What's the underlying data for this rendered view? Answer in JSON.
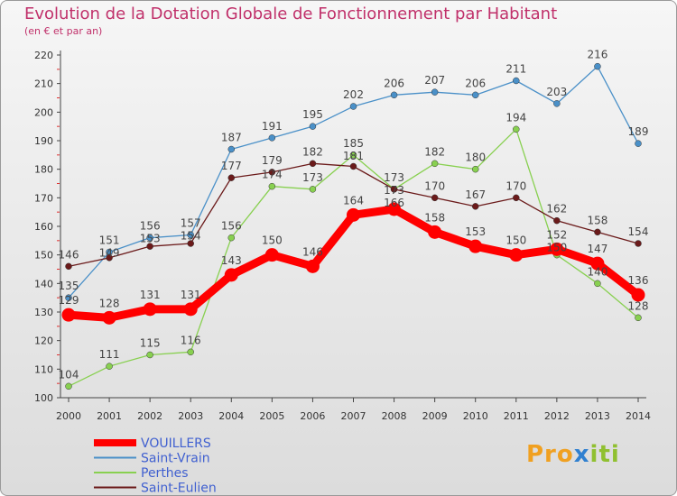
{
  "chart_data": {
    "type": "line",
    "title": "Evolution de la Dotation Globale de Fonctionnement par Habitant",
    "subtitle": "(en € et par an)",
    "xlabel": "",
    "ylabel": "",
    "x": [
      "2000",
      "2001",
      "2002",
      "2003",
      "2004",
      "2005",
      "2006",
      "2007",
      "2008",
      "2009",
      "2010",
      "2011",
      "2012",
      "2013",
      "2014"
    ],
    "ylim": [
      100,
      220
    ],
    "yticks": [
      100,
      110,
      120,
      130,
      140,
      150,
      160,
      170,
      180,
      190,
      200,
      210,
      220
    ],
    "grid": false,
    "legend_position": "bottom-left",
    "series": [
      {
        "name": "Saint-Vrain",
        "color": "#4a90c8",
        "values": [
          135,
          151,
          156,
          157,
          187,
          191,
          195,
          202,
          206,
          207,
          206,
          211,
          203,
          216,
          189
        ]
      },
      {
        "name": "Perthes",
        "color": "#88d050",
        "values": [
          104,
          111,
          115,
          116,
          156,
          174,
          173,
          185,
          173,
          182,
          180,
          194,
          150,
          140,
          128
        ]
      },
      {
        "name": "Saint-Eulien",
        "color": "#6b1a1a",
        "values": [
          146,
          149,
          153,
          154,
          177,
          179,
          182,
          181,
          173,
          170,
          167,
          170,
          162,
          158,
          154
        ]
      },
      {
        "name": "VOUILLERS",
        "color": "#ff0000",
        "values": [
          129,
          128,
          131,
          131,
          143,
          150,
          146,
          164,
          166,
          158,
          153,
          150,
          152,
          147,
          136
        ]
      }
    ],
    "legend_order": [
      "VOUILLERS",
      "Saint-Vrain",
      "Perthes",
      "Saint-Eulien"
    ]
  },
  "logo": {
    "text": "Proxiti",
    "parts": [
      "Pro",
      "x",
      "iti"
    ],
    "colors": [
      "#f0a020",
      "#3080d0",
      "#90c030"
    ]
  }
}
